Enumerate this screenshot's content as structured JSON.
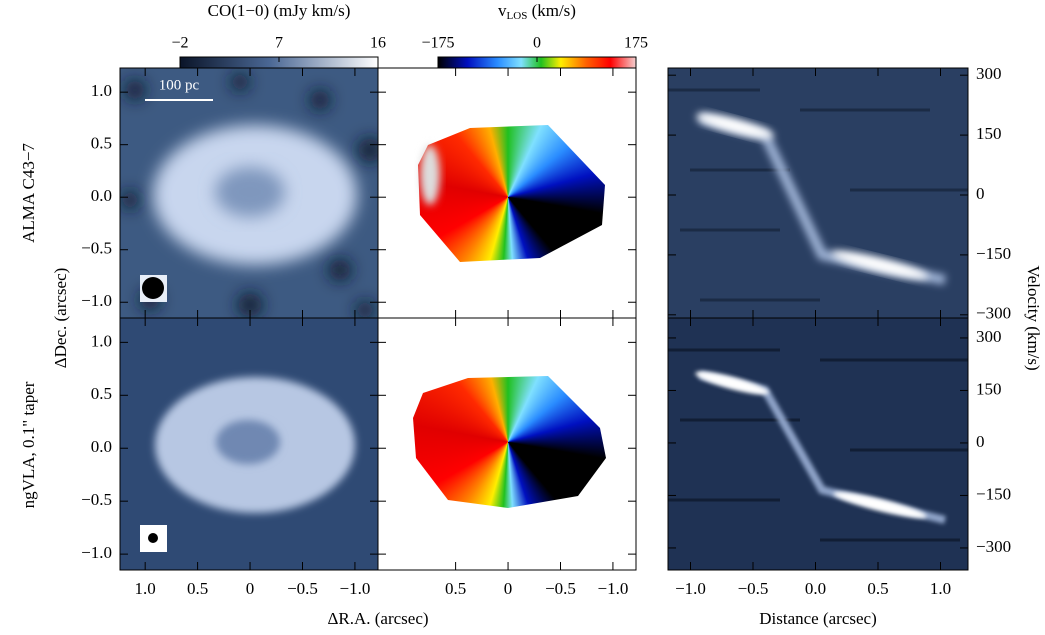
{
  "colorbars": [
    {
      "label": "CO(1−0) (mJy km/s)",
      "lim": [
        -2,
        16
      ],
      "ticks": [
        {
          "value": -2,
          "label": "−2"
        },
        7,
        16
      ]
    },
    {
      "label": {
        "text": "v",
        "sub": "LOS",
        "rest": " (km/s)"
      },
      "lim": [
        -175,
        175
      ],
      "ticks": [
        {
          "value": -175,
          "label": "−175"
        },
        0,
        175
      ]
    }
  ],
  "rows": [
    {
      "label": "ALMA C43−7"
    },
    {
      "label": "ngVLA, 0.1\" taper"
    }
  ],
  "scalebar": "100 pc",
  "maps": {
    "xlabel": "ΔR.A. (arcsec)",
    "ylabel": "ΔDec. (arcsec)",
    "xlim": [
      1.24,
      -1.22
    ],
    "ylim": [
      -1.15,
      1.23
    ],
    "xticks": [
      {
        "value": 1,
        "label": "1.0"
      },
      0.5,
      0,
      {
        "value": -0.5,
        "label": "−0.5"
      },
      {
        "value": -1,
        "label": "−1.0"
      }
    ],
    "mid_xticks": [
      0.5,
      0,
      {
        "value": -0.5,
        "label": "−0.5"
      },
      {
        "value": -1,
        "label": "−1.0"
      }
    ],
    "yticks": [
      {
        "value": 1,
        "label": "1.0"
      },
      0.5,
      {
        "value": 0,
        "label": "0.0"
      },
      {
        "value": -0.5,
        "label": "−0.5"
      },
      {
        "value": -1,
        "label": "−1.0"
      }
    ]
  },
  "pv": {
    "xlabel": "Distance (arcsec)",
    "ylabel": "Velocity (km/s)",
    "xlim": [
      -1.18,
      1.22
    ],
    "xticks": [
      {
        "value": -1,
        "label": "−1.0"
      },
      {
        "value": -0.5,
        "label": "−0.5"
      },
      {
        "value": 0,
        "label": "0.0"
      },
      0.5,
      {
        "value": 1,
        "label": "1.0"
      }
    ],
    "ylims": [
      [
        -308,
        318
      ],
      [
        -363,
        357
      ]
    ],
    "yticks": [
      300,
      150,
      0,
      {
        "value": -150,
        "label": "−150"
      },
      {
        "value": -300,
        "label": "−300"
      }
    ]
  }
}
